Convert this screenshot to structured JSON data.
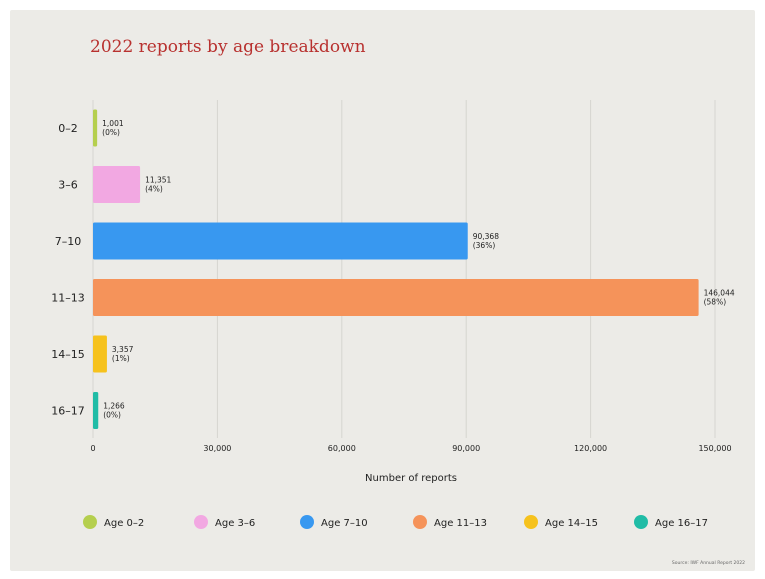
{
  "colors": {
    "background": "#ecebe7",
    "title": "#b8312f",
    "grid": "#d6d5d0"
  },
  "source_text": "Source: IWF Annual Report 2022",
  "chart_data": {
    "type": "bar",
    "orientation": "horizontal",
    "title": "2022 reports by age breakdown",
    "xlabel": "Number of reports",
    "ylabel": "",
    "xlim": [
      0,
      150000
    ],
    "xticks": [
      0,
      30000,
      60000,
      90000,
      120000,
      150000
    ],
    "xtick_labels": [
      "0",
      "30,000",
      "60,000",
      "90,000",
      "120,000",
      "150,000"
    ],
    "grid": true,
    "legend_position": "bottom",
    "categories": [
      "0–2",
      "3–6",
      "7–10",
      "11–13",
      "14–15",
      "16–17"
    ],
    "values": [
      1001,
      11351,
      90368,
      146044,
      3357,
      1266
    ],
    "value_labels": [
      "1,001",
      "11,351",
      "90,368",
      "146,044",
      "3,357",
      "1,266"
    ],
    "percent_labels": [
      "(0%)",
      "(4%)",
      "(36%)",
      "(58%)",
      "(1%)",
      "(0%)"
    ],
    "colors": [
      "#b5cf4e",
      "#f2a8e2",
      "#3898f0",
      "#f5935a",
      "#f6c21d",
      "#20bca6"
    ],
    "legend": [
      "Age 0–2",
      "Age 3–6",
      "Age 7–10",
      "Age 11–13",
      "Age 14–15",
      "Age 16–17"
    ]
  }
}
